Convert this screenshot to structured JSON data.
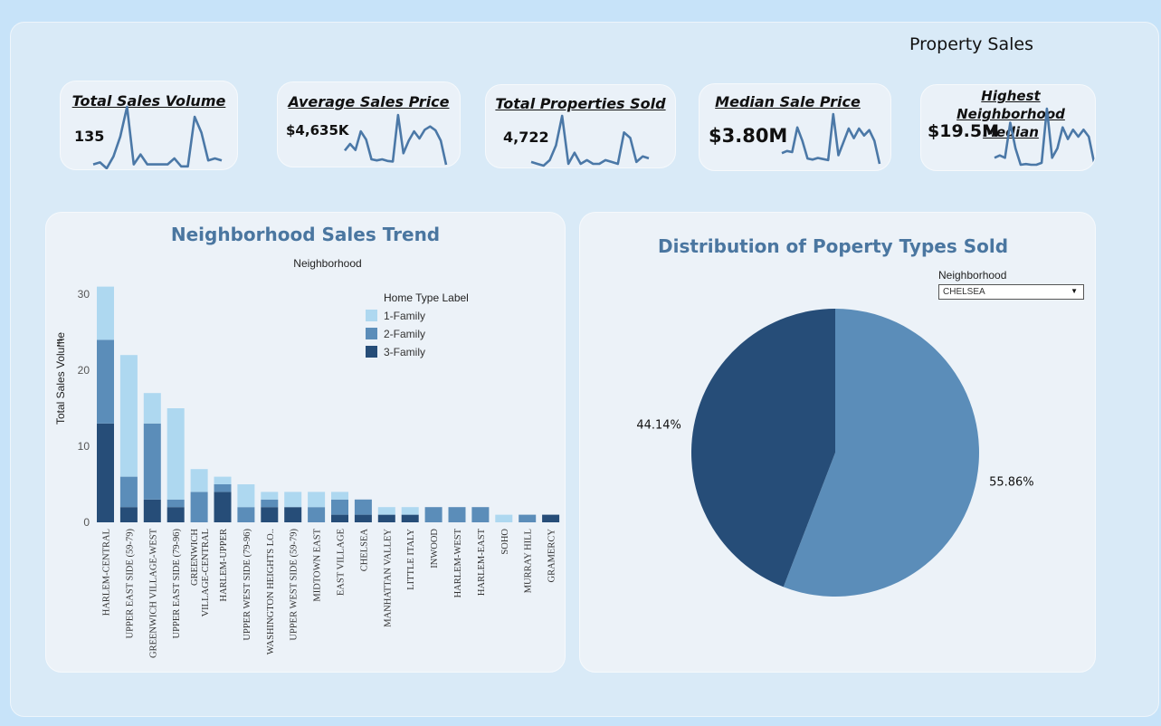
{
  "page_title": "Property Sales",
  "kpis": [
    {
      "title": "Total Sales Volume",
      "value": "135",
      "spark": [
        2,
        3,
        0,
        6,
        16,
        31,
        2,
        7,
        2,
        2,
        2,
        2,
        5,
        1,
        1,
        26,
        18,
        4,
        5,
        4
      ]
    },
    {
      "title": "Average Sales Price",
      "value": "$4,635K",
      "spark": [
        3000,
        4200,
        3100,
        6500,
        5000,
        1400,
        1200,
        1400,
        1100,
        1000,
        9500,
        2500,
        4800,
        6500,
        5200,
        6800,
        7400,
        6700,
        4800,
        400
      ]
    },
    {
      "title": "Total Properties Sold",
      "value": "4,722",
      "spark": [
        3,
        2,
        1,
        4,
        12,
        28,
        2,
        8,
        2,
        4,
        2,
        2,
        4,
        3,
        2,
        19,
        16,
        3,
        6,
        5
      ]
    },
    {
      "title": "Median Sale Price",
      "value": "$3.80M",
      "spark": [
        2.2,
        2.6,
        2.4,
        7.0,
        4.5,
        1.2,
        1.0,
        1.3,
        1.1,
        0.9,
        9.5,
        1.8,
        4.3,
        6.8,
        5.0,
        6.8,
        5.5,
        6.5,
        4.5,
        0.2
      ]
    },
    {
      "title": "Highest Neighborhood Median",
      "value": "$19.5M",
      "spark": [
        4,
        5,
        4,
        19,
        8,
        1,
        1.3,
        1,
        1,
        1.8,
        25,
        4,
        8,
        17,
        12,
        16,
        13,
        16,
        13,
        2
      ]
    }
  ],
  "bar_panel": {
    "title": "Neighborhood Sales Trend",
    "legend_title": "Home Type Label",
    "axis_icon": "sort-icon"
  },
  "pie_panel": {
    "title": "Distribution of Poperty Types Sold",
    "filter_label": "Neighborhood",
    "filter_value": "CHELSEA"
  },
  "colors": {
    "type1": "#aed8f0",
    "type2": "#5b8db9",
    "type3": "#264d78",
    "spark": "#4b78a7",
    "title": "#4a76a0"
  },
  "chart_data": [
    {
      "type": "bar",
      "title": "Neighborhood Sales Trend",
      "subtitle": "Neighborhood",
      "ylabel": "Total Sales Volume",
      "xlabel": "",
      "ylim": [
        0,
        32
      ],
      "yticks": [
        0,
        10,
        20,
        30
      ],
      "stacked": true,
      "legend_title": "Home Type Label",
      "legend_position": "top-right",
      "categories": [
        "HARLEM-CENTRAL",
        "UPPER EAST SIDE (59-79)",
        "GREENWICH VILLAGE-WEST",
        "UPPER EAST SIDE (79-96)",
        "GREENWICH VILLAGE-CENTRAL",
        "HARLEM-UPPER",
        "UPPER WEST SIDE (79-96)",
        "WASHINGTON HEIGHTS LO..",
        "UPPER WEST SIDE (59-79)",
        "MIDTOWN EAST",
        "EAST VILLAGE",
        "CHELSEA",
        "MANHATTAN VALLEY",
        "LITTLE ITALY",
        "INWOOD",
        "HARLEM-WEST",
        "HARLEM-EAST",
        "SOHO",
        "MURRAY HILL",
        "GRAMERCY"
      ],
      "series": [
        {
          "name": "3-Family",
          "values": [
            13,
            2,
            3,
            2,
            0,
            4,
            0,
            2,
            2,
            0,
            1,
            1,
            1,
            1,
            0,
            0,
            0,
            0,
            0,
            1
          ]
        },
        {
          "name": "2-Family",
          "values": [
            11,
            4,
            10,
            1,
            4,
            1,
            2,
            1,
            0,
            2,
            2,
            2,
            0,
            0,
            2,
            2,
            2,
            0,
            1,
            0
          ]
        },
        {
          "name": "1-Family",
          "values": [
            7,
            16,
            4,
            12,
            3,
            1,
            3,
            1,
            2,
            2,
            1,
            0,
            1,
            1,
            0,
            0,
            0,
            1,
            0,
            0
          ]
        }
      ]
    },
    {
      "type": "pie",
      "title": "Distribution of Poperty Types Sold",
      "filter": "CHELSEA",
      "slices": [
        {
          "label": "55.86%",
          "value": 55.86,
          "color": "#5b8db9"
        },
        {
          "label": "44.14%",
          "value": 44.14,
          "color": "#264d78"
        }
      ]
    }
  ]
}
